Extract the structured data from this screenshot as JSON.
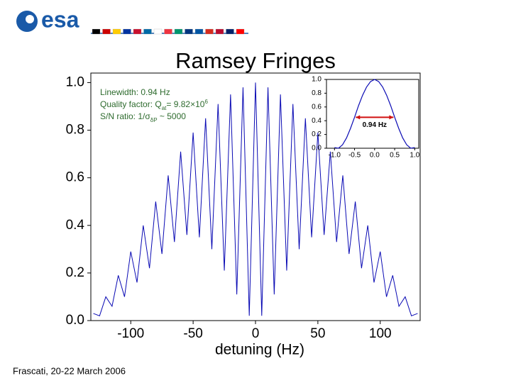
{
  "header": {
    "logo": "esa"
  },
  "footer": "Frascati, 20-22 March 2006",
  "chart_data": [
    {
      "type": "line",
      "title": "Ramsey Fringes",
      "x_label": "detuning (Hz)",
      "annotations": [
        [
          {
            "text": "Linewidth: 0.94 Hz"
          }
        ],
        [
          {
            "text": "Quality factor: Q"
          },
          {
            "sub": "at"
          },
          {
            "text": "= 9.82×10"
          },
          {
            "sup": "6"
          }
        ],
        [
          {
            "text": "S/N ratio: 1/σ"
          },
          {
            "sub": "δP"
          },
          {
            "text": " ~ 5000"
          }
        ]
      ],
      "x": [
        -130,
        -125,
        -120,
        -115,
        -110,
        -105,
        -100,
        -95,
        -90,
        -85,
        -80,
        -75,
        -70,
        -65,
        -60,
        -55,
        -50,
        -45,
        -40,
        -35,
        -30,
        -25,
        -20,
        -15,
        -10,
        -5,
        0,
        5,
        10,
        15,
        20,
        25,
        30,
        35,
        40,
        45,
        50,
        55,
        60,
        65,
        70,
        75,
        80,
        85,
        90,
        95,
        100,
        105,
        110,
        115,
        120,
        125,
        130
      ],
      "series": [
        {
          "color": "#0a0ab4",
          "values": [
            0.03,
            0.02,
            0.1,
            0.06,
            0.19,
            0.1,
            0.29,
            0.16,
            0.4,
            0.22,
            0.5,
            0.28,
            0.61,
            0.33,
            0.71,
            0.36,
            0.79,
            0.35,
            0.85,
            0.3,
            0.91,
            0.21,
            0.95,
            0.11,
            0.98,
            0.02,
            1.0,
            0.02,
            0.98,
            0.11,
            0.95,
            0.21,
            0.91,
            0.3,
            0.85,
            0.35,
            0.79,
            0.36,
            0.71,
            0.33,
            0.61,
            0.28,
            0.5,
            0.22,
            0.4,
            0.16,
            0.29,
            0.1,
            0.19,
            0.06,
            0.1,
            0.02,
            0.03
          ]
        }
      ],
      "xlim": [
        -132,
        132
      ],
      "xticks": [
        -100,
        -50,
        0,
        50,
        100
      ],
      "ylim": [
        0,
        1.04
      ],
      "yticks": [
        {
          "value": 0,
          "label": "0.0"
        },
        {
          "value": 0.2,
          "label": "0.2"
        },
        {
          "value": 0.4,
          "label": "0.4"
        },
        {
          "value": 0.6,
          "label": "0.6"
        },
        {
          "value": 0.8,
          "label": "0.8"
        },
        {
          "value": 1,
          "label": "1.0"
        }
      ]
    },
    {
      "type": "line",
      "annotation": "0.94 Hz",
      "x": [
        -1.0,
        -0.9,
        -0.8,
        -0.7,
        -0.6,
        -0.5,
        -0.4,
        -0.3,
        -0.2,
        -0.1,
        0,
        0.1,
        0.2,
        0.3,
        0.4,
        0.5,
        0.6,
        0.7,
        0.8,
        0.9,
        1.0
      ],
      "series": [
        {
          "color": "#0a0ab4",
          "values": [
            0.01,
            0.0,
            0.05,
            0.15,
            0.29,
            0.45,
            0.62,
            0.77,
            0.89,
            0.97,
            1.0,
            0.97,
            0.89,
            0.77,
            0.62,
            0.45,
            0.29,
            0.15,
            0.05,
            0.0,
            0.01
          ]
        }
      ],
      "xlim": [
        -1.2,
        1.1
      ],
      "xticks": [
        {
          "value": -1,
          "label": "-1.0"
        },
        {
          "value": -0.5,
          "label": "-0.5"
        },
        {
          "value": 0,
          "label": "0.0"
        },
        {
          "value": 0.5,
          "label": "0.5"
        },
        {
          "value": 1,
          "label": "1.0"
        }
      ],
      "ylim": [
        0,
        1.0
      ],
      "yticks": [
        {
          "value": 0,
          "label": "0.0"
        },
        {
          "value": 0.2,
          "label": "0.2"
        },
        {
          "value": 0.4,
          "label": "0.4"
        },
        {
          "value": 0.6,
          "label": "0.6"
        },
        {
          "value": 0.8,
          "label": "0.8"
        },
        {
          "value": 1,
          "label": "1.0"
        }
      ]
    }
  ]
}
